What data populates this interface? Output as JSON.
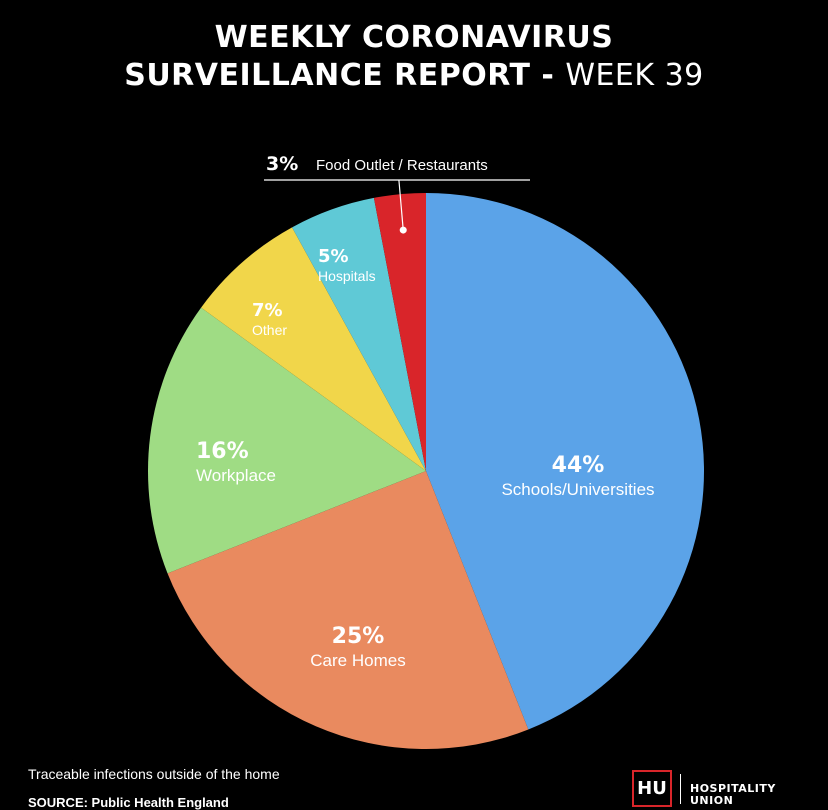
{
  "title": {
    "line1": "WEEKLY CORONAVIRUS",
    "line2_bold": "SURVEILLANCE REPORT - ",
    "line2_light": "WEEK 39"
  },
  "chart_data": {
    "type": "pie",
    "slices": [
      {
        "label": "Schools/Universities",
        "value": 44,
        "value_label": "44%",
        "color": "#5ba3e8"
      },
      {
        "label": "Care Homes",
        "value": 25,
        "value_label": "25%",
        "color": "#e98a5f"
      },
      {
        "label": "Workplace",
        "value": 16,
        "value_label": "16%",
        "color": "#9fdc84"
      },
      {
        "label": "Other",
        "value": 7,
        "value_label": "7%",
        "color": "#f1d64a"
      },
      {
        "label": "Hospitals",
        "value": 5,
        "value_label": "5%",
        "color": "#5fc9d6"
      },
      {
        "label": "Food Outlet / Restaurants",
        "value": 3,
        "value_label": "3%",
        "color": "#d9252a"
      }
    ],
    "start": "12 o'clock",
    "direction": "clockwise"
  },
  "footer": {
    "note": "Traceable infections outside of the home",
    "source": "SOURCE: Public Health England"
  },
  "logo": {
    "mark": "HU",
    "word1": "HOSPITALITY",
    "word2": "UNION"
  }
}
